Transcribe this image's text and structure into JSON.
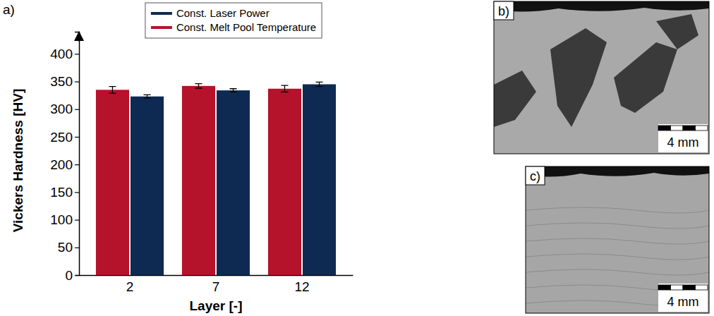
{
  "chart_data": {
    "type": "bar",
    "panel_label": "a)",
    "x_label": "Layer [-]",
    "y_label": "Vickers Hardness [HV]",
    "categories": [
      "2",
      "7",
      "12"
    ],
    "series": [
      {
        "name": "Const. Melt Pool Temperature",
        "color": "#b5122b",
        "values": [
          335,
          342,
          337
        ],
        "errors": [
          6,
          4,
          6
        ]
      },
      {
        "name": "Const. Laser Power",
        "color": "#0f2a52",
        "values": [
          323,
          334,
          345
        ],
        "errors": [
          3,
          3,
          4
        ]
      }
    ],
    "ylim": [
      0,
      440
    ],
    "yticks": [
      0,
      50,
      100,
      150,
      200,
      250,
      300,
      350,
      400
    ],
    "grid": false,
    "legend": "top"
  },
  "images": [
    {
      "label": "b)",
      "scale_bar": "4 mm"
    },
    {
      "label": "c)",
      "scale_bar": "4 mm"
    }
  ]
}
